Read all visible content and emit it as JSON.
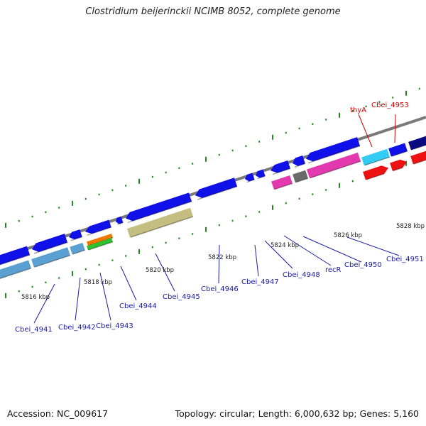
{
  "title": "Clostridium beijerinckii NCIMB 8052, complete genome",
  "footer": {
    "accession": "Accession: NC_009617",
    "topology": "Topology: circular; Length: 6,000,632 bp; Genes: 5,160"
  },
  "scale_ticks": [
    "5816 kbp",
    "5818 kbp",
    "5820 kbp",
    "5822 kbp",
    "5824 kbp",
    "5826 kbp",
    "5828 kbp"
  ],
  "gene_labels": [
    {
      "text": "thyA",
      "color": "#cc0000"
    },
    {
      "text": "Cbei_4953",
      "color": "#cc0000"
    },
    {
      "text": "Cbei_4941",
      "color": "#1a1aa6"
    },
    {
      "text": "Cbei_4942",
      "color": "#1a1aa6"
    },
    {
      "text": "Cbei_4943",
      "color": "#1a1aa6"
    },
    {
      "text": "Cbei_4944",
      "color": "#1a1aa6"
    },
    {
      "text": "Cbei_4945",
      "color": "#1a1aa6"
    },
    {
      "text": "Cbei_4946",
      "color": "#1a1aa6"
    },
    {
      "text": "Cbei_4947",
      "color": "#1a1aa6"
    },
    {
      "text": "Cbei_4948",
      "color": "#1a1aa6"
    },
    {
      "text": "recR",
      "color": "#1a1aa6"
    },
    {
      "text": "Cbei_4950",
      "color": "#1a1aa6"
    },
    {
      "text": "Cbei_4951",
      "color": "#1a1aa6"
    }
  ],
  "colors": {
    "cds": "#1010e8",
    "cds_dark": "#0a0a80",
    "trna": "#5aa0d0",
    "rrna_orange": "#f07800",
    "rrna_green": "#30c030",
    "olive": "#c4bf80",
    "pink": "#e23aae",
    "gray_feature": "#6a6a6a",
    "cyan": "#33ccf5",
    "red": "#ee1111",
    "backbone": "#7a7a7a",
    "tick": "#228822"
  }
}
